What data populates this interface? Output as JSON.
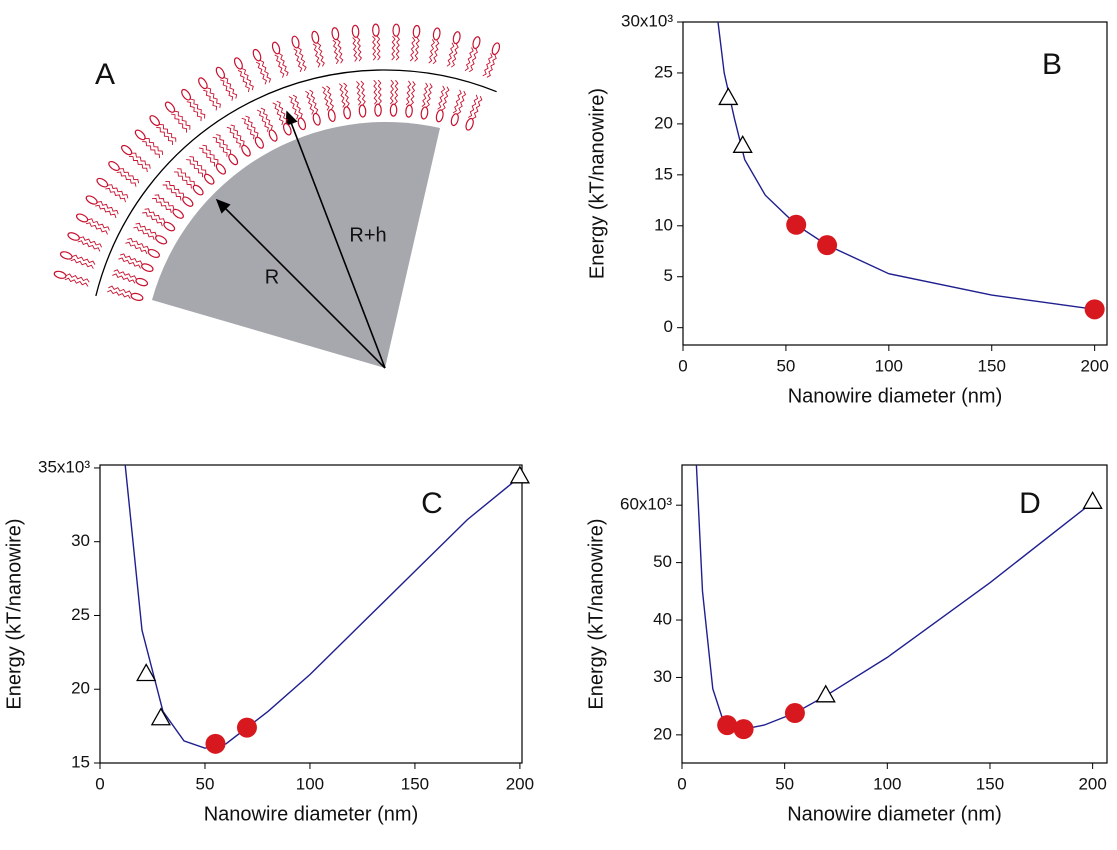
{
  "diagram": {
    "panel": "A",
    "labels": [
      "R",
      "R+h"
    ]
  },
  "chart_data": [
    {
      "type": "line",
      "panel": "B",
      "x_label": "Nanowire diameter (nm)",
      "y_label": "Energy (kT/nanowire)",
      "xlim": [
        0,
        206
      ],
      "ylim": [
        -1.7,
        30
      ],
      "xticks": [
        0,
        50,
        100,
        150,
        200
      ],
      "yticks": [
        0,
        5,
        10,
        15,
        20,
        25,
        {
          "value": 30,
          "label": "30x10³"
        }
      ],
      "series": [
        {
          "marker": "line",
          "color": "#1f1f8f",
          "x": [
            17,
            20,
            25,
            30,
            40,
            55,
            70,
            100,
            150,
            200
          ],
          "values": [
            30,
            25,
            20.5,
            16.5,
            13,
            10.1,
            8.1,
            5.3,
            3.2,
            1.8
          ]
        },
        {
          "marker": "triangle",
          "color": "#ffffff",
          "x": [
            22,
            29
          ],
          "values": [
            22.5,
            17.8
          ]
        },
        {
          "marker": "circle",
          "color": "#d7191f",
          "x": [
            55,
            70,
            200
          ],
          "values": [
            10.1,
            8.1,
            1.8
          ]
        }
      ]
    },
    {
      "type": "line",
      "panel": "C",
      "x_label": "Nanowire diameter (nm)",
      "y_label": "Energy (kT/nanowire)",
      "xlim": [
        0,
        201
      ],
      "ylim": [
        15,
        35.2
      ],
      "xticks": [
        0,
        50,
        100,
        150,
        200
      ],
      "yticks": [
        15,
        20,
        25,
        30,
        {
          "value": 35,
          "label": "35x10³"
        }
      ],
      "series": [
        {
          "marker": "line",
          "color": "#1f1f8f",
          "x": [
            12,
            20,
            30,
            40,
            50,
            60,
            80,
            100,
            125,
            150,
            175,
            200
          ],
          "values": [
            35.2,
            24,
            18.5,
            16.5,
            16,
            16.3,
            18.5,
            21,
            24.5,
            28,
            31.5,
            34.4
          ]
        },
        {
          "marker": "triangle",
          "color": "#ffffff",
          "x": [
            22,
            29,
            200
          ],
          "values": [
            21,
            18,
            34.4
          ]
        },
        {
          "marker": "circle",
          "color": "#d7191f",
          "x": [
            55,
            70
          ],
          "values": [
            16.3,
            17.4
          ]
        }
      ]
    },
    {
      "type": "line",
      "panel": "D",
      "x_label": "Nanowire diameter (nm)",
      "y_label": "Energy (kT/nanowire)",
      "xlim": [
        0,
        207
      ],
      "ylim": [
        15.1,
        67
      ],
      "xticks": [
        0,
        50,
        100,
        150,
        200
      ],
      "yticks": [
        20,
        30,
        40,
        50,
        {
          "value": 60,
          "label": "60x10³"
        }
      ],
      "series": [
        {
          "marker": "line",
          "color": "#1f1f8f",
          "x": [
            7,
            10,
            15,
            20,
            30,
            40,
            55,
            70,
            100,
            150,
            200
          ],
          "values": [
            67,
            45,
            28,
            22.5,
            21,
            21.7,
            23.8,
            26.8,
            33.5,
            46.5,
            60.5
          ]
        },
        {
          "marker": "triangle",
          "color": "#ffffff",
          "x": [
            70,
            200
          ],
          "values": [
            26.8,
            60.5
          ]
        },
        {
          "marker": "circle",
          "color": "#d7191f",
          "x": [
            22,
            30,
            55
          ],
          "values": [
            21.7,
            21,
            23.8
          ]
        }
      ]
    }
  ]
}
